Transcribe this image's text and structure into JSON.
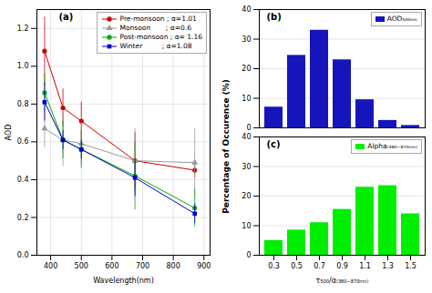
{
  "chart_data": [
    {
      "type": "line",
      "title": "(a)",
      "xlabel": "Wavelength(nm)",
      "ylabel": "AOD",
      "x": [
        380,
        440,
        500,
        675,
        870
      ],
      "xlim": [
        355,
        920
      ],
      "xticks": [
        400,
        500,
        600,
        700,
        800,
        900
      ],
      "ylim": [
        0,
        1.3
      ],
      "yticks": [
        {
          "value": 0,
          "label": "0.0"
        },
        0.2,
        0.4,
        0.6,
        0.8,
        {
          "value": 1,
          "label": "1.0"
        },
        1.2
      ],
      "grid": true,
      "legend": "upper right",
      "series": [
        {
          "name": "Pre-monsoon ; α=1.01",
          "color": "#cc0000",
          "marker": "circle",
          "values": [
            1.08,
            0.78,
            0.71,
            0.5,
            0.45
          ],
          "yerr": [
            0.18,
            0.1,
            0.1,
            0.15,
            0.04
          ]
        },
        {
          "name": "Monsoon       ; α=0.6",
          "color": "#999999",
          "marker": "triangle",
          "values": [
            0.67,
            0.61,
            0.59,
            0.5,
            0.49
          ],
          "yerr": [
            0.1,
            0.14,
            0.11,
            0.17,
            0.18
          ]
        },
        {
          "name": "Post-monsoon ; α= 1.16",
          "color": "#00aa00",
          "marker": "circle",
          "values": [
            0.86,
            0.61,
            0.56,
            0.42,
            0.25
          ],
          "yerr": [
            0.1,
            0.1,
            0.1,
            0.18,
            0.1
          ]
        },
        {
          "name": "Winter         ; α=1.08",
          "color": "#0000cc",
          "marker": "square",
          "values": [
            0.81,
            0.61,
            0.56,
            0.41,
            0.22
          ],
          "yerr": [
            0.1,
            0.05,
            0.05,
            0.1,
            0.05
          ]
        }
      ]
    },
    {
      "type": "bar",
      "title": "(b)",
      "ylabel": "Percentage of Occurence (%)",
      "categories": [
        0.3,
        0.5,
        0.7,
        0.9,
        1.1,
        1.3,
        1.5
      ],
      "series": [
        {
          "name": "AOD₅₀₀ₙₘ",
          "color": "#1515bb",
          "values": [
            7.0,
            24.5,
            33.0,
            23.0,
            9.5,
            2.5,
            0.8
          ]
        }
      ],
      "ylim": [
        0,
        40
      ],
      "yticks": [
        0,
        10,
        20,
        30,
        40
      ],
      "grid": true,
      "legend": "upper right",
      "tick_labels": "y"
    },
    {
      "type": "bar",
      "title": "(c)",
      "ylabel": "Percentage of Occurence (%)",
      "xlabel": "τ₅₀₀/α₍₃₈₀₋₈₇₀ₙₘ₎",
      "categories": [
        0.3,
        0.5,
        0.7,
        0.9,
        1.1,
        1.3,
        1.5
      ],
      "series": [
        {
          "name": "Alpha₍₃₈₀₋₈₇₀ₙₘ₎",
          "color": "#00ee00",
          "values": [
            5.0,
            8.5,
            11.0,
            15.5,
            23.0,
            23.5,
            14.0
          ]
        }
      ],
      "ylim": [
        0,
        40
      ],
      "yticks": [
        0,
        10,
        20,
        30,
        40
      ],
      "grid": true,
      "legend": "upper right"
    }
  ]
}
